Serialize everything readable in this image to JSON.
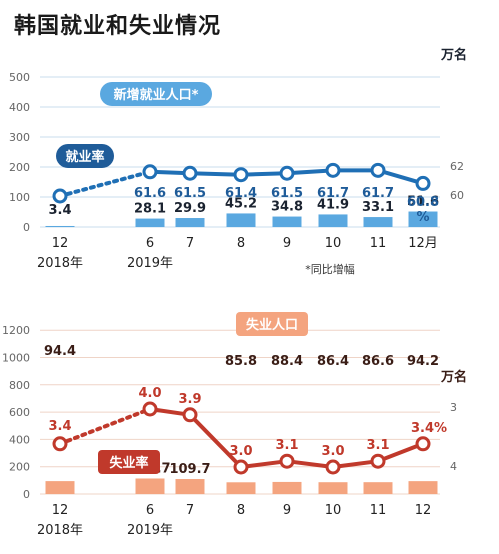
{
  "title": "韩国就业和失业情况",
  "chart_data": [
    {
      "type": "bar",
      "categories": [
        "12",
        "6",
        "7",
        "8",
        "9",
        "10",
        "11",
        "12月"
      ],
      "year_labels": [
        "2018年",
        "2019年"
      ],
      "bar_series": {
        "name": "新增就业人口*",
        "values": [
          3.4,
          28.1,
          29.9,
          45.2,
          34.8,
          41.9,
          33.1,
          51.6
        ],
        "unit": "万名",
        "color": "#5aa8e0"
      },
      "line_series": {
        "name": "就业率",
        "values": [
          null,
          61.6,
          61.5,
          61.4,
          61.5,
          61.7,
          61.7,
          60.8
        ],
        "unit": "%",
        "color": "#1f6fb5"
      },
      "line_value_labels": [
        "",
        "61.6",
        "61.5",
        "61.4",
        "61.5",
        "61.7",
        "61.7",
        "60.8"
      ],
      "line_unit_label": "%",
      "bar_unit_label": "万名",
      "y_left": {
        "ticks": [
          0,
          100,
          200,
          300,
          400,
          500
        ],
        "range": [
          0,
          550
        ]
      },
      "y_right": {
        "ticks": [
          60,
          62
        ]
      },
      "note": "*同比增幅"
    },
    {
      "type": "bar",
      "categories": [
        "12",
        "6",
        "7",
        "8",
        "9",
        "10",
        "11",
        "12"
      ],
      "year_labels": [
        "2018年",
        "2019年"
      ],
      "bar_series": {
        "name": "失业人口",
        "values": [
          94.4,
          113.7,
          109.7,
          85.8,
          88.4,
          86.4,
          86.6,
          94.2
        ],
        "unit": "万名",
        "color": "#f4a47f"
      },
      "line_series": {
        "name": "失业率",
        "values": [
          3.4,
          4.0,
          3.9,
          3.0,
          3.1,
          3.0,
          3.1,
          3.4
        ],
        "unit": "%",
        "color": "#c0392b"
      },
      "line_value_labels": [
        "3.4",
        "4.0",
        "3.9",
        "3.0",
        "3.1",
        "3.0",
        "3.1",
        "3.4%"
      ],
      "bar_unit_label": "万名",
      "y_left": {
        "ticks": [
          0,
          200,
          400,
          600,
          800,
          1000,
          1200
        ],
        "range": [
          0,
          1260
        ]
      },
      "y_right": {
        "ticks": [
          3,
          4
        ]
      }
    }
  ]
}
